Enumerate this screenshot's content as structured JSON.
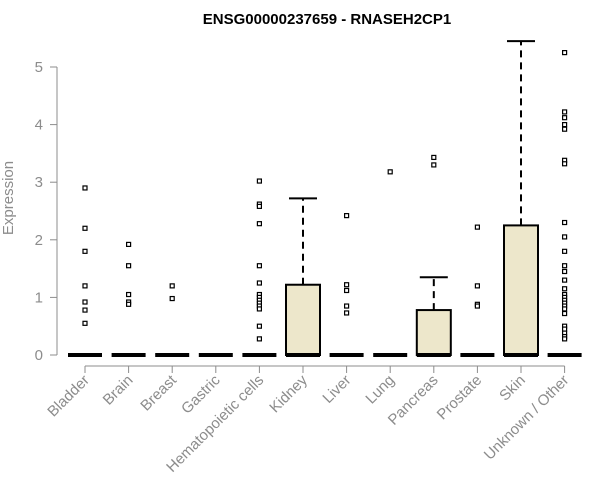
{
  "colors": {
    "box_fill": "#ede7cb",
    "axis": "#8c8c8c",
    "stroke": "#000000"
  },
  "chart_data": {
    "type": "box",
    "title": "ENSG00000237659 - RNASEH2CP1",
    "xlabel": "",
    "ylabel": "Expression",
    "ylim": [
      0,
      5.45
    ],
    "yticks": [
      0,
      1,
      2,
      3,
      4,
      5
    ],
    "grid": false,
    "categories": [
      "Bladder",
      "Brain",
      "Breast",
      "Gastric",
      "Hematopoietic cells",
      "Kidney",
      "Liver",
      "Lung",
      "Pancreas",
      "Prostate",
      "Skin",
      "Unknown / Other"
    ],
    "boxes": [
      {
        "category": "Bladder",
        "q1": 0,
        "median": 0,
        "q3": 0,
        "whisker_low": 0,
        "whisker_high": 0,
        "outliers": [
          2.9,
          2.2,
          1.8,
          1.2,
          0.92,
          0.78,
          0.55
        ]
      },
      {
        "category": "Brain",
        "q1": 0,
        "median": 0,
        "q3": 0,
        "whisker_low": 0,
        "whisker_high": 0,
        "outliers": [
          1.92,
          1.55,
          1.05,
          0.92,
          0.88
        ]
      },
      {
        "category": "Breast",
        "q1": 0,
        "median": 0,
        "q3": 0,
        "whisker_low": 0,
        "whisker_high": 0,
        "outliers": [
          1.2,
          0.98
        ]
      },
      {
        "category": "Gastric",
        "q1": 0,
        "median": 0,
        "q3": 0,
        "whisker_low": 0,
        "whisker_high": 0,
        "outliers": []
      },
      {
        "category": "Hematopoietic cells",
        "q1": 0,
        "median": 0,
        "q3": 0,
        "whisker_low": 0,
        "whisker_high": 0,
        "outliers": [
          3.02,
          2.62,
          2.58,
          2.28,
          1.55,
          1.25,
          1.05,
          1.0,
          0.95,
          0.9,
          0.85,
          0.8,
          0.5,
          0.28
        ]
      },
      {
        "category": "Kidney",
        "q1": 0,
        "median": 0,
        "q3": 1.22,
        "whisker_low": 0,
        "whisker_high": 2.72,
        "outliers": []
      },
      {
        "category": "Liver",
        "q1": 0,
        "median": 0,
        "q3": 0,
        "whisker_low": 0,
        "whisker_high": 0,
        "outliers": [
          2.42,
          1.22,
          1.12,
          0.85,
          0.73
        ]
      },
      {
        "category": "Lung",
        "q1": 0,
        "median": 0,
        "q3": 0,
        "whisker_low": 0,
        "whisker_high": 0,
        "outliers": [
          3.18
        ]
      },
      {
        "category": "Pancreas",
        "q1": 0,
        "median": 0,
        "q3": 0.78,
        "whisker_low": 0,
        "whisker_high": 1.35,
        "outliers": [
          3.43,
          3.3
        ]
      },
      {
        "category": "Prostate",
        "q1": 0,
        "median": 0,
        "q3": 0,
        "whisker_low": 0,
        "whisker_high": 0,
        "outliers": [
          2.22,
          1.2,
          0.88,
          0.85
        ]
      },
      {
        "category": "Skin",
        "q1": 0,
        "median": 0,
        "q3": 2.25,
        "whisker_low": 0,
        "whisker_high": 5.45,
        "outliers": []
      },
      {
        "category": "Unknown / Other",
        "q1": 0,
        "median": 0,
        "q3": 0,
        "whisker_low": 0,
        "whisker_high": 0,
        "outliers": [
          5.25,
          4.22,
          4.12,
          4.0,
          3.92,
          3.38,
          3.32,
          2.3,
          2.05,
          1.8,
          1.55,
          1.45,
          1.3,
          1.15,
          1.05,
          1.0,
          0.95,
          0.9,
          0.85,
          0.8,
          0.72,
          0.5,
          0.45,
          0.38,
          0.32,
          0.28
        ]
      }
    ]
  }
}
